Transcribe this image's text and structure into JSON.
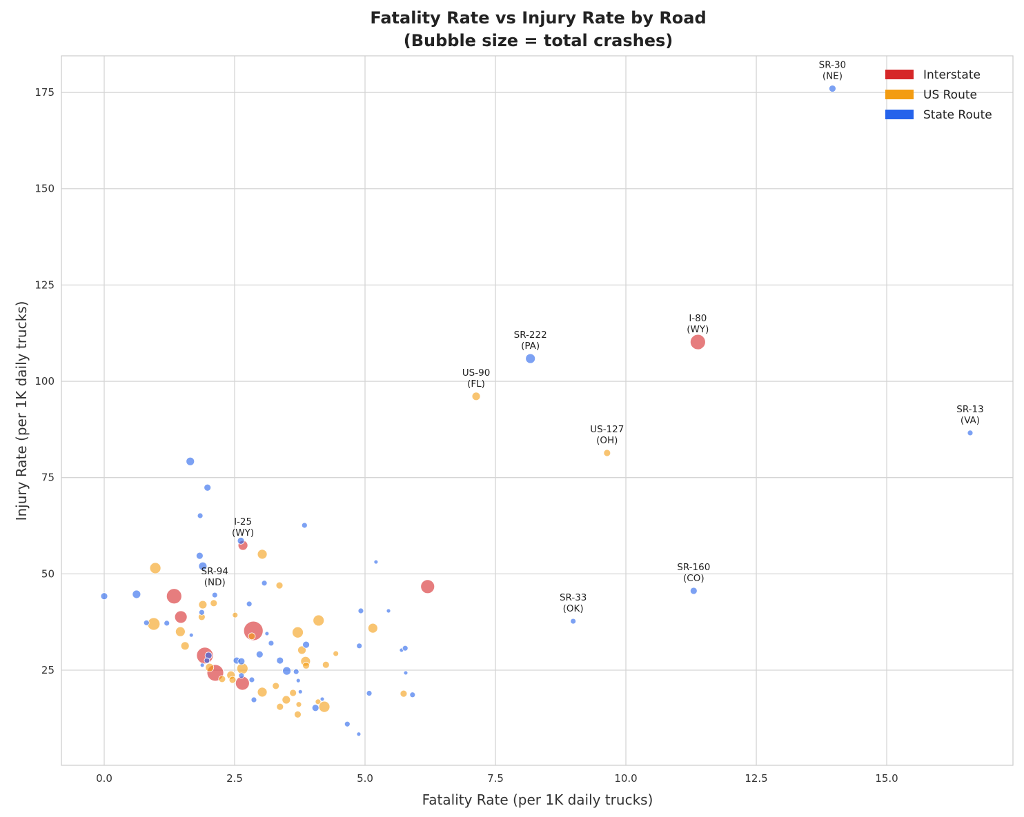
{
  "chart_data": {
    "type": "scatter",
    "title": [
      "Fatality Rate vs Injury Rate by Road",
      "(Bubble size = total crashes)"
    ],
    "xlabel": "Fatality Rate (per 1K daily trucks)",
    "ylabel": "Injury Rate (per 1K daily trucks)",
    "xlim": [
      -0.82,
      17.42
    ],
    "ylim": [
      0.3,
      184.5
    ],
    "xticks": [
      "0.0",
      "2.5",
      "5.0",
      "7.5",
      "10.0",
      "12.5",
      "15.0"
    ],
    "yticks": [
      "25",
      "50",
      "75",
      "100",
      "125",
      "150",
      "175"
    ],
    "grid": true,
    "legend_position": "top-right",
    "series": [
      {
        "name": "Interstate",
        "color": "#d62728",
        "points": [
          [
            1.34,
            44.2,
            1210
          ],
          [
            1.47,
            38.8,
            810
          ],
          [
            1.93,
            28.8,
            1440
          ],
          [
            2.13,
            24.3,
            1440
          ],
          [
            2.65,
            21.6,
            1000
          ],
          [
            2.66,
            57.4,
            490,
            "I-25",
            "(WY)"
          ],
          [
            2.86,
            35.2,
            1960
          ],
          [
            6.2,
            46.7,
            1000
          ],
          [
            11.38,
            110.2,
            1210,
            "I-80",
            "(WY)"
          ]
        ]
      },
      {
        "name": "US Route",
        "color": "#f39c12",
        "points": [
          [
            0.98,
            51.5,
            640
          ],
          [
            0.95,
            37.0,
            810
          ],
          [
            1.46,
            35.0,
            490
          ],
          [
            1.55,
            31.3,
            360
          ],
          [
            1.89,
            42.0,
            360
          ],
          [
            1.87,
            38.8,
            250
          ],
          [
            2.1,
            42.4,
            250
          ],
          [
            2.02,
            25.7,
            360
          ],
          [
            2.26,
            22.7,
            250
          ],
          [
            2.43,
            23.7,
            360
          ],
          [
            2.46,
            22.5,
            250
          ],
          [
            2.51,
            39.3,
            160
          ],
          [
            2.65,
            25.4,
            640
          ],
          [
            2.83,
            33.8,
            250
          ],
          [
            3.03,
            55.1,
            490
          ],
          [
            3.03,
            19.3,
            490
          ],
          [
            3.29,
            20.9,
            250
          ],
          [
            3.36,
            47.0,
            250
          ],
          [
            3.37,
            15.5,
            250
          ],
          [
            3.49,
            17.3,
            360
          ],
          [
            3.62,
            19.1,
            250
          ],
          [
            3.71,
            34.8,
            640
          ],
          [
            3.71,
            13.5,
            250
          ],
          [
            3.73,
            16.1,
            160
          ],
          [
            3.79,
            30.2,
            360
          ],
          [
            3.86,
            27.3,
            490
          ],
          [
            3.87,
            26.2,
            250
          ],
          [
            4.1,
            16.8,
            160
          ],
          [
            4.11,
            37.9,
            640
          ],
          [
            4.22,
            15.5,
            640
          ],
          [
            4.25,
            26.4,
            250
          ],
          [
            4.44,
            29.3,
            160
          ],
          [
            5.15,
            35.9,
            490
          ],
          [
            5.74,
            18.9,
            250
          ],
          [
            7.13,
            96.1,
            360,
            "US-90",
            "(FL)"
          ],
          [
            9.64,
            81.4,
            250,
            "US-127",
            "(OH)"
          ]
        ]
      },
      {
        "name": "State Route",
        "color": "#2563eb",
        "points": [
          [
            0.0,
            44.2,
            250
          ],
          [
            0.62,
            44.7,
            360
          ],
          [
            0.81,
            37.3,
            160
          ],
          [
            1.2,
            37.2,
            160
          ],
          [
            1.65,
            79.2,
            360
          ],
          [
            1.98,
            72.4,
            250
          ],
          [
            1.84,
            65.1,
            160
          ],
          [
            1.83,
            54.7,
            250
          ],
          [
            1.89,
            52.0,
            360
          ],
          [
            2.12,
            44.5,
            160,
            "SR-94",
            "(ND)"
          ],
          [
            1.87,
            40.0,
            160
          ],
          [
            1.67,
            34.1,
            90
          ],
          [
            1.88,
            26.3,
            90
          ],
          [
            2.0,
            28.8,
            250
          ],
          [
            1.97,
            27.5,
            160
          ],
          [
            2.62,
            58.6,
            250
          ],
          [
            2.78,
            42.2,
            160
          ],
          [
            2.54,
            27.5,
            250
          ],
          [
            2.63,
            27.3,
            250
          ],
          [
            2.63,
            23.6,
            160
          ],
          [
            2.83,
            22.5,
            160
          ],
          [
            2.87,
            17.3,
            160
          ],
          [
            2.98,
            29.1,
            250
          ],
          [
            3.07,
            47.6,
            160
          ],
          [
            3.12,
            34.5,
            90
          ],
          [
            3.2,
            32.0,
            160
          ],
          [
            3.37,
            27.5,
            250
          ],
          [
            3.5,
            24.8,
            360
          ],
          [
            3.68,
            24.6,
            160
          ],
          [
            3.72,
            22.3,
            90
          ],
          [
            3.76,
            19.4,
            90
          ],
          [
            3.84,
            62.6,
            160
          ],
          [
            3.87,
            31.6,
            250
          ],
          [
            4.05,
            15.2,
            250
          ],
          [
            4.18,
            17.5,
            90
          ],
          [
            4.66,
            11.0,
            160
          ],
          [
            4.88,
            8.4,
            90
          ],
          [
            4.92,
            40.4,
            160
          ],
          [
            4.89,
            31.3,
            160
          ],
          [
            5.08,
            19.0,
            160
          ],
          [
            5.21,
            53.1,
            90
          ],
          [
            5.45,
            40.4,
            90
          ],
          [
            5.7,
            30.2,
            90
          ],
          [
            5.77,
            30.7,
            160
          ],
          [
            5.78,
            24.3,
            90
          ],
          [
            5.91,
            18.6,
            160
          ],
          [
            8.17,
            105.9,
            490,
            "SR-222",
            "(PA)"
          ],
          [
            8.99,
            37.7,
            160,
            "SR-33",
            "(OK)"
          ],
          [
            11.3,
            45.6,
            250,
            "SR-160",
            "(CO)"
          ],
          [
            13.96,
            176.0,
            250,
            "SR-30",
            "(NE)"
          ],
          [
            16.6,
            86.6,
            160,
            "SR-13",
            "(VA)"
          ]
        ]
      }
    ]
  }
}
